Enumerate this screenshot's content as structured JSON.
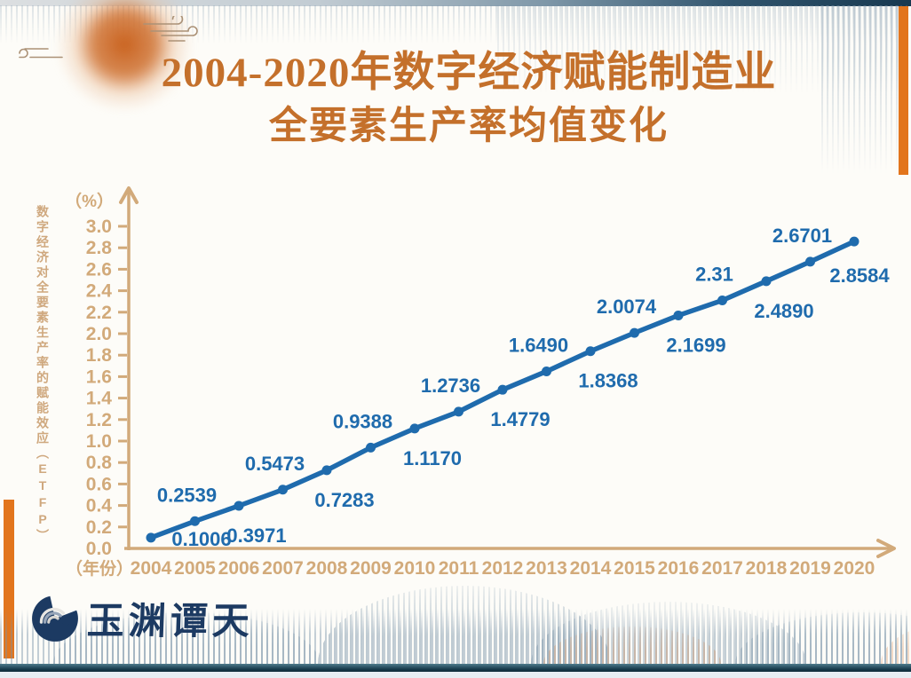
{
  "title": {
    "line1": "2004-2020年数字经济赋能制造业",
    "line2": "全要素生产率均值变化"
  },
  "chart_data": {
    "type": "line",
    "title": "2004-2020年数字经济赋能制造业全要素生产率均值变化",
    "x": [
      "2004",
      "2005",
      "2006",
      "2007",
      "2008",
      "2009",
      "2010",
      "2011",
      "2012",
      "2013",
      "2014",
      "2015",
      "2016",
      "2017",
      "2018",
      "2019",
      "2020"
    ],
    "values": [
      0.1006,
      0.2539,
      0.3971,
      0.5473,
      0.7283,
      0.9388,
      1.117,
      1.2736,
      1.4779,
      1.649,
      1.8368,
      2.0074,
      2.1699,
      2.31,
      2.489,
      2.6701,
      2.8584
    ],
    "point_labels": [
      "0.1006",
      "0.2539",
      "0.3971",
      "0.5473",
      "0.7283",
      "0.9388",
      "1.1170",
      "1.2736",
      "1.4779",
      "1.6490",
      "1.8368",
      "2.0074",
      "2.1699",
      "2.31",
      "2.4890",
      "2.6701",
      "2.8584"
    ],
    "ylabel": "数字经济对全要素生产率的赋能效应（ETFP）",
    "y_unit_label": "（%）",
    "x_unit_label": "（年份）",
    "xlabel": "",
    "y_ticks": [
      "0.0",
      "0.2",
      "0.4",
      "0.6",
      "0.8",
      "1.0",
      "1.2",
      "1.4",
      "1.6",
      "1.8",
      "2.0",
      "2.2",
      "2.4",
      "2.6",
      "2.8",
      "3.0"
    ],
    "ylim": [
      0,
      3.0
    ],
    "grid": false,
    "legend_position": "none",
    "line_color": "#1f6bad",
    "axis_color": "#d2aa7a"
  },
  "footer": {
    "logo_text": "玉渊谭天"
  },
  "colors": {
    "title_orange": "#c4702b",
    "accent_orange": "#e2751d",
    "axis_tan": "#d2aa7a",
    "line_blue": "#1f6bad",
    "logo_navy": "#1c3a62"
  }
}
